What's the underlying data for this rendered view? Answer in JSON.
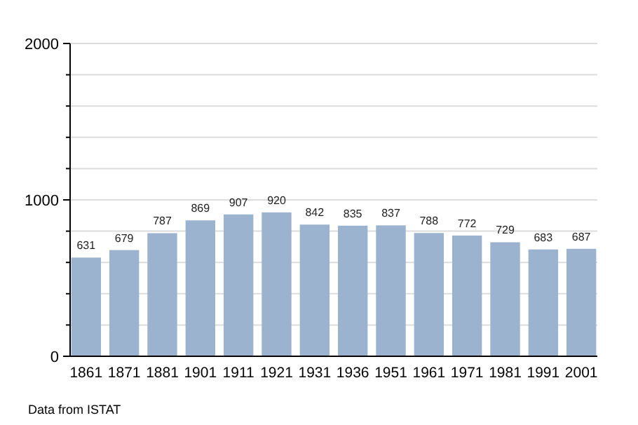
{
  "chart_data": {
    "type": "bar",
    "categories": [
      "1861",
      "1871",
      "1881",
      "1901",
      "1911",
      "1921",
      "1931",
      "1936",
      "1951",
      "1961",
      "1971",
      "1981",
      "1991",
      "2001"
    ],
    "values": [
      631,
      679,
      787,
      869,
      907,
      920,
      842,
      835,
      837,
      788,
      772,
      729,
      683,
      687
    ],
    "color": "#9bb3cf",
    "data_labels": true,
    "ylim": [
      0,
      2000
    ],
    "yticks": [
      0,
      {
        "value": 200,
        "label": null
      },
      {
        "value": 400,
        "label": null
      },
      {
        "value": 600,
        "label": null
      },
      {
        "value": 800,
        "label": null
      },
      1000,
      {
        "value": 1200,
        "label": null
      },
      {
        "value": 1400,
        "label": null
      },
      {
        "value": 1600,
        "label": null
      },
      {
        "value": 1800,
        "label": null
      },
      2000
    ],
    "grid": "y",
    "annotations": [
      "Data from ISTAT"
    ]
  }
}
